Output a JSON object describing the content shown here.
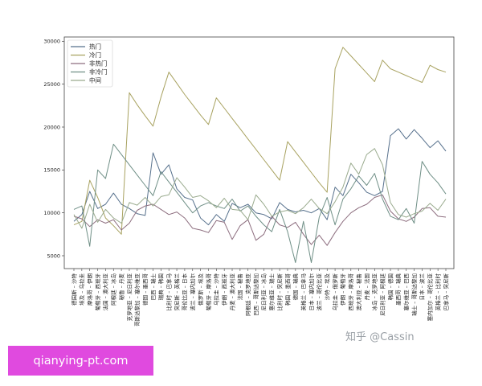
{
  "watermark": "知乎 @Cassin",
  "site_badge": "qianying-pt.com",
  "chart_data": {
    "type": "line",
    "title": "",
    "xlabel": "",
    "ylabel": "",
    "ylim": [
      3500,
      30500
    ],
    "yticks": [
      5000,
      10000,
      15000,
      20000,
      25000,
      30000
    ],
    "grid": false,
    "legend_position": "top-left",
    "categories": [
      "德国斯 – 沙特",
      "埃及 – 乌拉圭",
      "摩洛哥 – 伊朗",
      "葡萄牙 – 西班牙",
      "法国 – 澳大利亚",
      "阿根廷 – 冰岛",
      "秘鲁 – 丹麦",
      "克罗地亚 – 尼日利亚",
      "哥斯达黎加 – 塞尔维亚",
      "德国 – 墨西哥",
      "巴西 – 瑞士",
      "瑞典 – 韩国",
      "比利时 – 巴拿马",
      "突尼斯 – 英格兰",
      "哥伦比亚 – 日本",
      "波兰 – 塞内加尔",
      "俄罗斯 – 埃及",
      "葡萄牙 – 摩洛哥",
      "乌拉圭 – 沙特",
      "伊朗 – 西班牙",
      "丹麦 – 澳大利亚",
      "法国 – 秘鲁",
      "阿根廷 – 克罗地亚",
      "巴西 – 哥斯达黎加",
      "尼日利亚 – 冰岛",
      "塞尔维亚 – 瑞士",
      "比利时 – 突尼斯",
      "韩国 – 墨西哥",
      "德国 – 瑞典",
      "英格兰 – 巴拿马",
      "日本 – 塞内加尔",
      "波兰 – 哥伦比亚",
      "沙特 – 埃及",
      "乌拉圭 – 俄罗斯",
      "伊朗 – 葡萄牙",
      "西班牙 – 摩洛哥",
      "澳大利亚 – 秘鲁",
      "丹麦 – 法国",
      "冰岛 – 克罗地亚",
      "尼日利亚 – 阿根廷",
      "韩国 – 德国",
      "墨西哥 – 瑞典",
      "塞尔维亚 – 巴西",
      "瑞士 – 哥斯达黎加",
      "日本 – 波兰",
      "塞内加尔 – 哥伦比亚",
      "英格兰 – 比利时",
      "巴拿马 – 突尼斯"
    ],
    "series": [
      {
        "name": "热门",
        "color": "#56708c",
        "values": [
          9000,
          9800,
          12500,
          10500,
          11000,
          12300,
          11000,
          10500,
          9900,
          9700,
          17000,
          14500,
          15600,
          12800,
          11800,
          11500,
          9400,
          8600,
          9800,
          9000,
          11100,
          10600,
          11000,
          10000,
          9800,
          9300,
          11200,
          10400,
          10100,
          10300,
          10000,
          10500,
          9200,
          13000,
          12000,
          14500,
          13500,
          12400,
          12000,
          12500,
          19000,
          19800,
          18600,
          19700,
          18700,
          17600,
          18400,
          17200
        ]
      },
      {
        "name": "冷门",
        "color": "#a8a260",
        "values": [
          8600,
          9000,
          13800,
          11800,
          9400,
          8500,
          7500,
          24000,
          22600,
          21300,
          20100,
          23500,
          26400,
          25100,
          23800,
          22600,
          21400,
          20300,
          23400,
          22200,
          21000,
          19800,
          18600,
          17400,
          16200,
          15000,
          13800,
          18300,
          17100,
          15900,
          14700,
          13500,
          12400,
          26800,
          29300,
          28300,
          27300,
          26300,
          25300,
          27800,
          26800,
          26400,
          26000,
          25600,
          25200,
          27200,
          26700,
          26400
        ]
      },
      {
        "name": "非热门",
        "color": "#8d6e7f",
        "values": [
          9600,
          9300,
          8400,
          9200,
          8800,
          9200,
          8000,
          8800,
          10300,
          10800,
          11000,
          10400,
          9800,
          10100,
          9400,
          8200,
          8000,
          7700,
          9100,
          8900,
          6900,
          8500,
          9200,
          6800,
          7500,
          9600,
          8600,
          8300,
          8900,
          7500,
          6300,
          7400,
          6200,
          7700,
          9000,
          10000,
          10600,
          11000,
          11800,
          12100,
          10200,
          9300,
          9000,
          9500,
          10500,
          10600,
          9600,
          9500
        ]
      },
      {
        "name": "非冷门",
        "color": "#6f8f86",
        "values": [
          10400,
          10800,
          6100,
          15000,
          14000,
          18000,
          16800,
          15600,
          14400,
          13200,
          12000,
          14800,
          13600,
          12400,
          11200,
          10000,
          10800,
          11200,
          10800,
          10500,
          11600,
          10200,
          10800,
          9600,
          8600,
          7800,
          10400,
          7800,
          4200,
          9000,
          4200,
          9500,
          11800,
          8600,
          11600,
          12800,
          14300,
          13200,
          14600,
          11600,
          9600,
          9200,
          10500,
          8800,
          16000,
          14500,
          13500,
          12200
        ]
      },
      {
        "name": "中间",
        "color": "#9aab8e",
        "values": [
          9800,
          8200,
          11000,
          8900,
          10400,
          9400,
          8800,
          11200,
          10900,
          11800,
          10800,
          11900,
          12100,
          14100,
          13000,
          11800,
          12000,
          11400,
          10600,
          11700,
          10400,
          10300,
          9200,
          12100,
          11000,
          9600,
          10100,
          10300,
          9900,
          10600,
          11600,
          10500,
          9900,
          11300,
          13000,
          15800,
          14500,
          16800,
          17500,
          15600,
          11200,
          9800,
          9500,
          9900,
          10200,
          11100,
          10300,
          11600
        ]
      }
    ]
  }
}
